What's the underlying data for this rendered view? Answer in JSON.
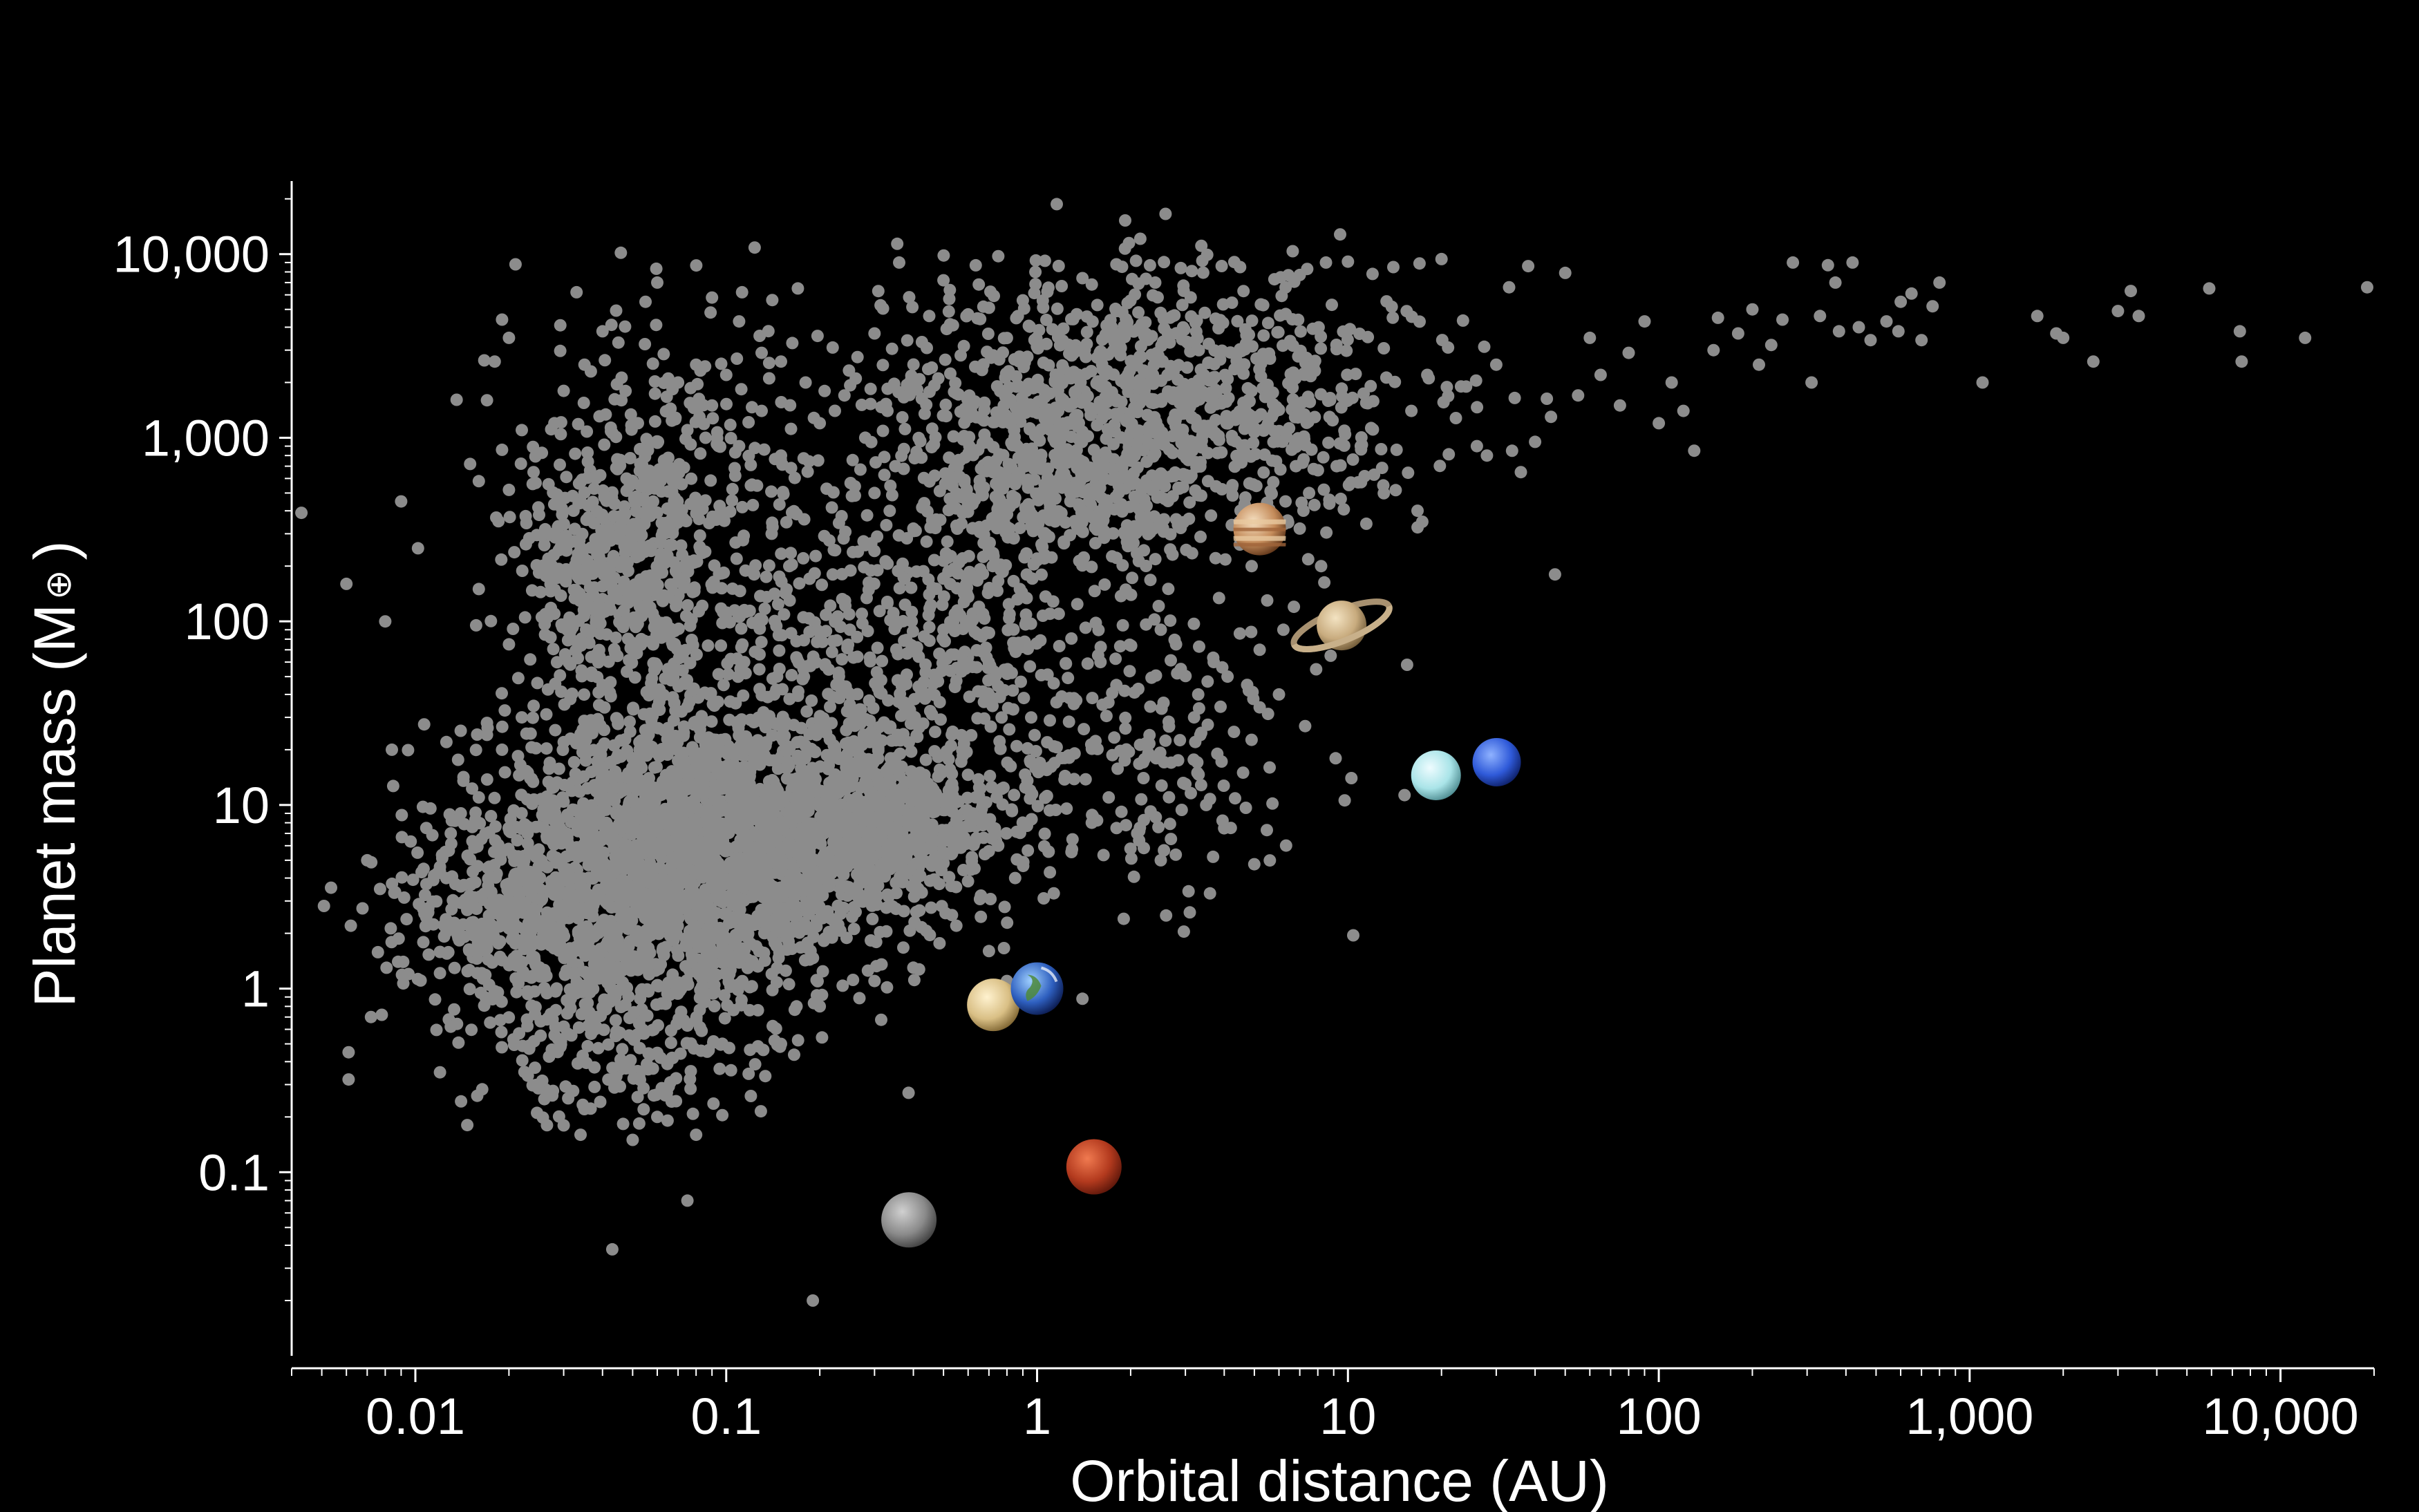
{
  "chart_data": {
    "type": "scatter",
    "title": "",
    "xlabel": "Orbital distance (AU)",
    "ylabel_text": "Planet mass (M",
    "ylabel_symbol": "⊕",
    "ylabel_close": ")",
    "xscale": "log",
    "yscale": "log",
    "xlim": [
      0.004,
      20000
    ],
    "ylim": [
      0.01,
      25000
    ],
    "x_ticks": [
      {
        "value": 0.01,
        "label": "0.01"
      },
      {
        "value": 0.1,
        "label": "0.1"
      },
      {
        "value": 1,
        "label": "1"
      },
      {
        "value": 10,
        "label": "10"
      },
      {
        "value": 100,
        "label": "100"
      },
      {
        "value": 1000,
        "label": "1,000"
      },
      {
        "value": 10000,
        "label": "10,000"
      }
    ],
    "y_ticks": [
      {
        "value": 0.1,
        "label": "0.1"
      },
      {
        "value": 1,
        "label": "1"
      },
      {
        "value": 10,
        "label": "10"
      },
      {
        "value": 100,
        "label": "100"
      },
      {
        "value": 1000,
        "label": "1,000"
      },
      {
        "value": 10000,
        "label": "10,000"
      }
    ],
    "background": "#000000",
    "axis_color": "#ffffff",
    "grid": false,
    "legend": "none",
    "series": [
      {
        "marker_color": "#8c8c8c",
        "points": [
          [
            0.0043,
            390
          ],
          [
            0.006,
            160
          ],
          [
            0.0062,
            2.2
          ],
          [
            0.0061,
            0.45
          ],
          [
            0.0061,
            0.32
          ],
          [
            0.008,
            100
          ],
          [
            0.009,
            450
          ],
          [
            0.0102,
            250
          ],
          [
            0.007,
            5
          ],
          [
            0.0072,
            0.7
          ],
          [
            0.0078,
            0.72
          ],
          [
            0.0088,
            1.4
          ],
          [
            0.0095,
            1.2
          ],
          [
            0.011,
            2.6
          ],
          [
            0.012,
            0.35
          ],
          [
            0.013,
            0.62
          ],
          [
            0.014,
            3.6
          ],
          [
            0.015,
            1.6
          ],
          [
            0.016,
            150
          ],
          [
            0.017,
            1600
          ],
          [
            0.019,
            4400
          ],
          [
            0.021,
            8800
          ],
          [
            0.02,
            3500
          ],
          [
            0.018,
            2600
          ],
          [
            0.024,
            650
          ],
          [
            0.026,
            260
          ],
          [
            0.028,
            1200
          ],
          [
            0.033,
            6200
          ],
          [
            0.045,
            3300
          ],
          [
            0.06,
            7000
          ],
          [
            0.07,
            2000
          ],
          [
            0.082,
            1300
          ],
          [
            0.09,
            5800
          ],
          [
            0.11,
            4300
          ],
          [
            0.17,
            6500
          ],
          [
            0.36,
            9000
          ],
          [
            0.5,
            7200
          ],
          [
            1.06,
            9200
          ],
          [
            0.043,
            0.038
          ],
          [
            0.19,
            0.02
          ],
          [
            0.075,
            0.07
          ],
          [
            0.044,
            0.9
          ],
          [
            0.012,
            4.6
          ],
          [
            0.016,
            11
          ],
          [
            0.019,
            20
          ],
          [
            0.022,
            30
          ],
          [
            0.03,
            22
          ],
          [
            0.04,
            45
          ],
          [
            0.028,
            110
          ],
          [
            0.02,
            75
          ],
          [
            0.017,
            28
          ],
          [
            0.014,
            9
          ],
          [
            0.013,
            7
          ],
          [
            0.023,
            15
          ],
          [
            0.026,
            0.25
          ],
          [
            0.03,
            0.18
          ],
          [
            0.034,
            0.16
          ],
          [
            0.05,
            0.15
          ],
          [
            0.06,
            0.2
          ],
          [
            0.08,
            0.16
          ],
          [
            0.12,
            0.26
          ],
          [
            0.15,
            0.5
          ],
          [
            0.2,
            0.8
          ],
          [
            0.3,
            1.1
          ],
          [
            0.4,
            1.3
          ],
          [
            0.55,
            2.2
          ],
          [
            0.7,
            1.6
          ],
          [
            0.8,
            1.1
          ],
          [
            0.95,
            0.95
          ],
          [
            1.4,
            0.88
          ],
          [
            1.05,
            3.1
          ],
          [
            1.9,
            2.4
          ],
          [
            2.6,
            2.5
          ],
          [
            3.1,
            2.6
          ],
          [
            3.6,
            3.3
          ],
          [
            4.2,
            7.5
          ],
          [
            4.6,
            15
          ],
          [
            5.6,
            16
          ],
          [
            5.2,
            34
          ],
          [
            4.1,
            50
          ],
          [
            3.2,
            30
          ],
          [
            2.3,
            24
          ],
          [
            1.8,
            45
          ],
          [
            1.6,
            60
          ],
          [
            2.8,
            75
          ],
          [
            6.7,
            120
          ],
          [
            8.8,
            65
          ],
          [
            15.5,
            58
          ],
          [
            10.4,
            1.95
          ],
          [
            7.5,
            500
          ],
          [
            9.2,
            700
          ],
          [
            11,
            900
          ],
          [
            13,
            550
          ],
          [
            16,
            1400
          ],
          [
            18,
            2200
          ],
          [
            21,
            3100
          ],
          [
            24,
            1900
          ],
          [
            26,
            900
          ],
          [
            28,
            800
          ],
          [
            30,
            2500
          ],
          [
            36,
            650
          ],
          [
            40,
            950
          ],
          [
            45,
            1300
          ],
          [
            55,
            1700
          ],
          [
            65,
            2200
          ],
          [
            80,
            2900
          ],
          [
            90,
            4300
          ],
          [
            110,
            2000
          ],
          [
            120,
            1400
          ],
          [
            130,
            850
          ],
          [
            155,
            4500
          ],
          [
            180,
            3700
          ],
          [
            210,
            2500
          ],
          [
            250,
            4400
          ],
          [
            270,
            9000
          ],
          [
            310,
            2000
          ],
          [
            330,
            4600
          ],
          [
            370,
            7000
          ],
          [
            420,
            9000
          ],
          [
            480,
            3400
          ],
          [
            540,
            4300
          ],
          [
            600,
            5500
          ],
          [
            650,
            6100
          ],
          [
            700,
            3400
          ],
          [
            760,
            5200
          ],
          [
            800,
            7000
          ],
          [
            1100,
            2000
          ],
          [
            1650,
            4600
          ],
          [
            1900,
            3700
          ],
          [
            2000,
            3500
          ],
          [
            2500,
            2600
          ],
          [
            3000,
            4900
          ],
          [
            3300,
            6300
          ],
          [
            3500,
            4600
          ],
          [
            5900,
            6500
          ],
          [
            7400,
            3800
          ],
          [
            7500,
            2600
          ],
          [
            12000,
            3500
          ],
          [
            19000,
            6600
          ],
          [
            380,
            3800
          ],
          [
            350,
            8700
          ],
          [
            440,
            4000
          ],
          [
            590,
            3800
          ],
          [
            230,
            3200
          ],
          [
            200,
            5000
          ],
          [
            150,
            3000
          ],
          [
            100,
            1200
          ],
          [
            75,
            1500
          ],
          [
            60,
            3500
          ],
          [
            50,
            7900
          ],
          [
            38,
            8600
          ],
          [
            33,
            6600
          ],
          [
            20,
            9400
          ],
          [
            17,
            8900
          ],
          [
            14,
            8500
          ],
          [
            12,
            7800
          ],
          [
            10,
            9100
          ],
          [
            8.5,
            9000
          ],
          [
            7,
            7700
          ],
          [
            5.8,
            7300
          ],
          [
            4.5,
            8500
          ],
          [
            3.4,
            9200
          ],
          [
            2.9,
            8400
          ],
          [
            2.4,
            7000
          ],
          [
            1.8,
            8800
          ],
          [
            1.4,
            7400
          ],
          [
            1.2,
            6700
          ],
          [
            0.9,
            5600
          ],
          [
            0.7,
            5100
          ],
          [
            0.6,
            4700
          ],
          [
            0.45,
            4600
          ],
          [
            0.3,
            3700
          ],
          [
            0.22,
            3100
          ],
          [
            0.15,
            2600
          ],
          [
            0.13,
            2900
          ],
          [
            0.1,
            2200
          ],
          [
            0.08,
            2500
          ],
          [
            0.055,
            5500
          ],
          [
            0.04,
            3800
          ],
          [
            0.035,
            2500
          ],
          [
            0.03,
            1800
          ],
          [
            0.022,
            1100
          ],
          [
            0.019,
            860
          ],
          [
            0.016,
            580
          ],
          [
            0.015,
            720
          ],
          [
            0.02,
            520
          ],
          [
            0.025,
            380
          ],
          [
            0.027,
            300
          ],
          [
            0.29,
            22
          ],
          [
            0.35,
            18
          ],
          [
            0.42,
            15
          ],
          [
            0.47,
            25
          ],
          [
            0.52,
            12
          ],
          [
            0.62,
            9
          ],
          [
            0.75,
            6
          ],
          [
            0.85,
            4
          ],
          [
            1.1,
            4.3
          ],
          [
            1.3,
            6.5
          ],
          [
            1.5,
            8
          ],
          [
            0.95,
            12
          ],
          [
            1.2,
            18
          ],
          [
            1.7,
            11
          ],
          [
            2.1,
            7
          ],
          [
            2.5,
            5
          ],
          [
            2.2,
            14
          ],
          [
            2.7,
            17
          ],
          [
            3.0,
            13
          ],
          [
            3.5,
            10
          ],
          [
            3.8,
            19
          ],
          [
            3.3,
            40
          ],
          [
            2.9,
            55
          ],
          [
            2.5,
            90
          ],
          [
            3.7,
            60
          ],
          [
            4.3,
            25
          ],
          [
            4.8,
            42
          ],
          [
            5.2,
            70
          ],
          [
            6.2,
            90
          ],
          [
            6.0,
            40
          ],
          [
            5.5,
            130
          ],
          [
            4.9,
            200
          ],
          [
            5.8,
            300
          ],
          [
            6.3,
            450
          ],
          [
            7.0,
            320
          ],
          [
            7.8,
            430
          ],
          [
            8.2,
            200
          ],
          [
            6.8,
            700
          ],
          [
            0.45,
            140
          ],
          [
            0.5,
            90
          ],
          [
            0.58,
            60
          ],
          [
            0.65,
            120
          ],
          [
            0.72,
            200
          ],
          [
            0.8,
            300
          ],
          [
            0.88,
            150
          ],
          [
            1.0,
            220
          ],
          [
            1.1,
            110
          ],
          [
            0.4,
            320
          ],
          [
            0.3,
            500
          ],
          [
            0.35,
            700
          ],
          [
            0.28,
            260
          ],
          [
            0.22,
            180
          ],
          [
            0.25,
            90
          ],
          [
            0.19,
            60
          ],
          [
            0.16,
            130
          ],
          [
            0.14,
            300
          ],
          [
            0.12,
            550
          ],
          [
            0.11,
            900
          ],
          [
            0.09,
            1500
          ],
          [
            0.075,
            1100
          ],
          [
            0.065,
            700
          ],
          [
            0.052,
            1200
          ],
          [
            0.046,
            1600
          ],
          [
            0.2,
            1200
          ],
          [
            0.24,
            1700
          ],
          [
            0.18,
            2000
          ],
          [
            0.15,
            800
          ],
          [
            0.13,
            1400
          ],
          [
            0.28,
            1000
          ],
          [
            0.33,
            1400
          ]
        ],
        "clusters": [
          {
            "cx": 0.075,
            "cy": 5,
            "sx": 0.35,
            "sy": 0.38,
            "n": 1700
          },
          {
            "cx": 0.16,
            "cy": 7,
            "sx": 0.32,
            "sy": 0.28,
            "n": 700
          },
          {
            "cx": 0.02,
            "cy": 2.7,
            "sx": 0.18,
            "sy": 0.2,
            "n": 260
          },
          {
            "cx": 0.045,
            "cy": 0.8,
            "sx": 0.25,
            "sy": 0.35,
            "n": 380
          },
          {
            "cx": 0.045,
            "cy": 200,
            "sx": 0.14,
            "sy": 0.32,
            "n": 430
          },
          {
            "cx": 0.07,
            "cy": 700,
            "sx": 0.25,
            "sy": 0.42,
            "n": 220
          },
          {
            "cx": 0.07,
            "cy": 30,
            "sx": 0.3,
            "sy": 0.5,
            "n": 320
          },
          {
            "cx": 2.2,
            "cy": 1500,
            "sx": 0.42,
            "sy": 0.35,
            "n": 1050
          },
          {
            "cx": 1.2,
            "cy": 500,
            "sx": 0.2,
            "sy": 0.15,
            "n": 220
          },
          {
            "cx": 0.6,
            "cy": 120,
            "sx": 0.4,
            "sy": 0.5,
            "n": 380
          },
          {
            "cx": 0.35,
            "cy": 40,
            "sx": 0.3,
            "sy": 0.4,
            "n": 250
          },
          {
            "cx": 2.0,
            "cy": 15,
            "sx": 0.3,
            "sy": 0.35,
            "n": 140
          },
          {
            "cx": 0.4,
            "cy": 8,
            "sx": 0.12,
            "sy": 0.15,
            "n": 200
          }
        ]
      }
    ],
    "solar_system": [
      {
        "name": "Mercury",
        "x": 0.387,
        "y": 0.055,
        "colors": [
          "#d0d0d0",
          "#8a8a8a",
          "#3e3e3e"
        ]
      },
      {
        "name": "Venus",
        "x": 0.723,
        "y": 0.815,
        "colors": [
          "#fff2cf",
          "#d9bf85",
          "#7d6330"
        ]
      },
      {
        "name": "Earth",
        "x": 1.0,
        "y": 1.0,
        "colors": [
          "#9fd0ff",
          "#2e5fbf",
          "#0b1a4d"
        ]
      },
      {
        "name": "Mars",
        "x": 1.524,
        "y": 0.107,
        "colors": [
          "#f07a50",
          "#b33a1e",
          "#5c160a"
        ]
      },
      {
        "name": "Jupiter",
        "x": 5.2,
        "y": 318,
        "colors": [
          "#f5dfc0",
          "#c48b5a",
          "#5e3418"
        ]
      },
      {
        "name": "Saturn",
        "x": 9.54,
        "y": 95,
        "colors": [
          "#f3e3c2",
          "#c8ab7e",
          "#6e5836"
        ]
      },
      {
        "name": "Uranus",
        "x": 19.2,
        "y": 14.5,
        "colors": [
          "#eefcff",
          "#a9e4e8",
          "#4c8a8f"
        ]
      },
      {
        "name": "Neptune",
        "x": 30.1,
        "y": 17.1,
        "colors": [
          "#8fb2ff",
          "#2f5ad9",
          "#0d1f66"
        ]
      }
    ]
  }
}
